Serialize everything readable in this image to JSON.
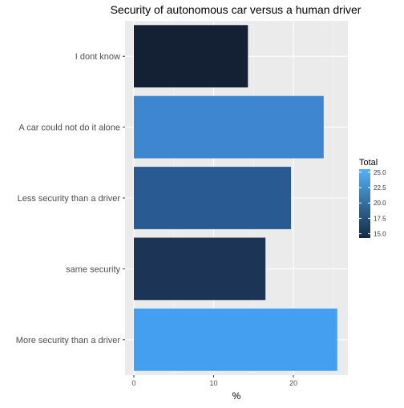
{
  "chart_data": {
    "type": "bar",
    "orientation": "horizontal",
    "title": "Security of autonomous car versus a human driver",
    "xlabel": "%",
    "ylabel": "",
    "xlim": [
      0,
      26.8
    ],
    "x_ticks": [
      0,
      10,
      20
    ],
    "x_tick_labels": [
      "0",
      "10",
      "20"
    ],
    "grid": true,
    "categories": [
      "I dont know",
      "A car could not do it alone",
      "Less security than a driver",
      "same security",
      "More security than a driver"
    ],
    "values": [
      14.3,
      23.8,
      19.7,
      16.5,
      25.5
    ],
    "bar_colors": [
      "#142135",
      "#3e86cf",
      "#295a91",
      "#1c3556",
      "#459ff0"
    ],
    "legend": {
      "title": "Total",
      "placement": "right",
      "min": 14.3,
      "max": 25.5,
      "ticks": [
        15.0,
        17.5,
        20.0,
        22.5,
        25.0
      ],
      "tick_labels": [
        "15.0",
        "17.5",
        "20.0",
        "22.5",
        "25.0"
      ],
      "color_low": "#132b43",
      "color_high": "#56b1f7"
    },
    "panel_background": "#ebebeb"
  }
}
